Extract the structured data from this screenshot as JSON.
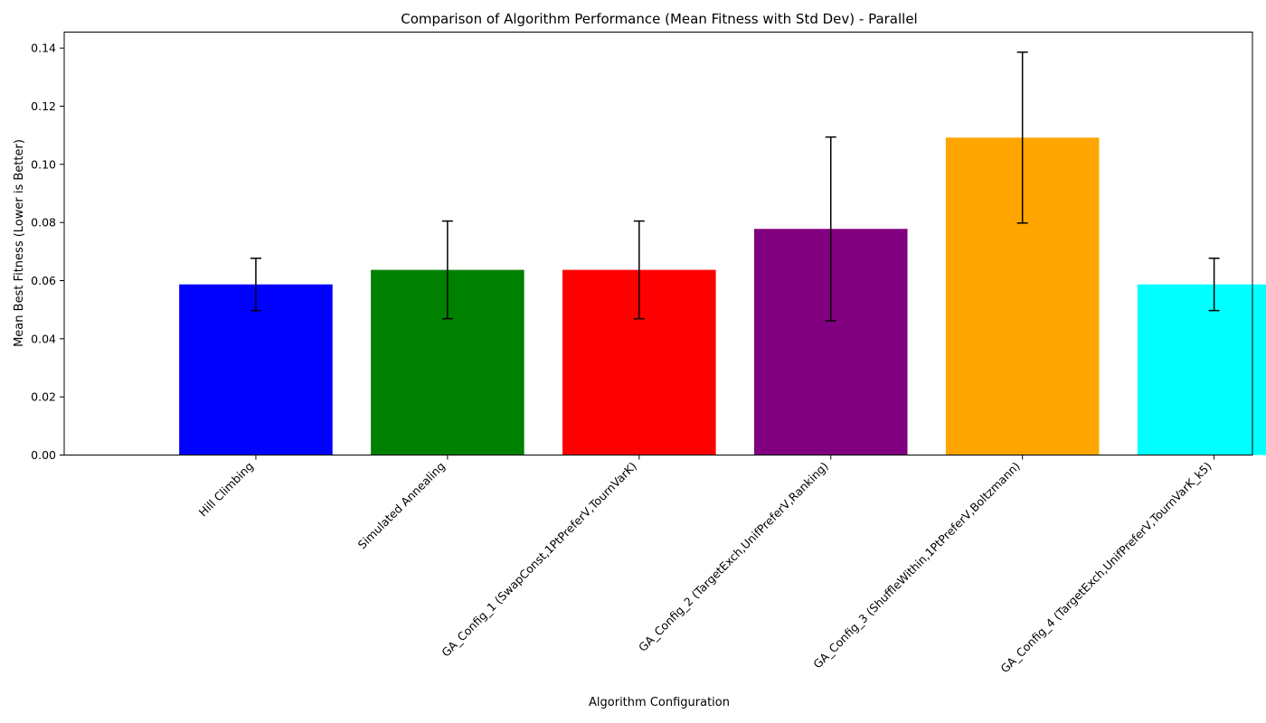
{
  "chart_data": {
    "type": "bar",
    "title": "Comparison of Algorithm Performance (Mean Fitness with Std Dev) - Parallel",
    "xlabel": "Algorithm Configuration",
    "ylabel": "Mean Best Fitness (Lower is Better)",
    "ylim": [
      0,
      0.1455
    ],
    "yticks": [
      "0.00",
      "0.02",
      "0.04",
      "0.06",
      "0.08",
      "0.10",
      "0.12",
      "0.14"
    ],
    "grid": false,
    "categories": [
      "Hill Climbing",
      "Simulated Annealing",
      "GA_Config_1 (SwapConst,1PtPreferV,TournVarK)",
      "GA_Config_2 (TargetExch,UnifPreferV,Ranking)",
      "GA_Config_3 (ShuffleWithin,1PtPreferV,Boltzmann)",
      "GA_Config_4 (TargetExch,UnifPreferV,TournVarK_k5)"
    ],
    "values": [
      0.0587,
      0.0637,
      0.0637,
      0.0778,
      0.1092,
      0.0587
    ],
    "errors": [
      0.009,
      0.0168,
      0.0168,
      0.0316,
      0.0294,
      0.009
    ],
    "colors": [
      "#0000ff",
      "#008000",
      "#ff0000",
      "#800080",
      "#ffa500",
      "#00ffff"
    ]
  }
}
